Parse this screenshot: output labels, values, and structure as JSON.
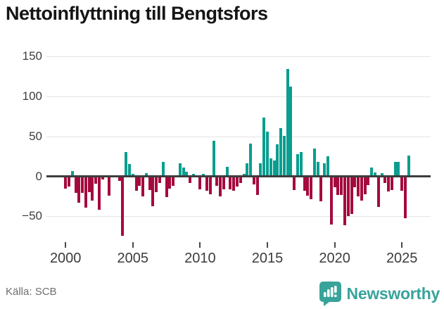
{
  "title": "Nettoinflyttning till Bengtsfors",
  "source": "Källa: SCB",
  "logo": {
    "text": "Newsworthy"
  },
  "colors": {
    "positive": "#0a9e8f",
    "negative": "#a50a3d",
    "logo_teal": "#38a39a",
    "zero_line": "#3d3d3d",
    "gridline": "#e4e4e4"
  },
  "chart_data": {
    "type": "bar",
    "title": "Nettoinflyttning till Bengtsfors",
    "xlabel": "",
    "ylabel": "",
    "frequency": "quarterly",
    "grid": "horizontal",
    "legend": "none",
    "ylim": [
      -80,
      155
    ],
    "y_tick_values": [
      150,
      100,
      50,
      0,
      -50
    ],
    "y_tick_labels": [
      "150",
      "100",
      "50",
      "0",
      "−50"
    ],
    "x_tick_years": [
      2000,
      2005,
      2010,
      2015,
      2020,
      2025
    ],
    "x_tick_labels": [
      "2000",
      "2005",
      "2010",
      "2015",
      "2020",
      "2025"
    ],
    "quarters": [
      "2000-Q1",
      "2000-Q2",
      "2000-Q3",
      "2000-Q4",
      "2001-Q1",
      "2001-Q2",
      "2001-Q3",
      "2001-Q4",
      "2002-Q1",
      "2002-Q2",
      "2002-Q3",
      "2002-Q4",
      "2003-Q1",
      "2003-Q2",
      "2003-Q3",
      "2003-Q4",
      "2004-Q1",
      "2004-Q2",
      "2004-Q3",
      "2004-Q4",
      "2005-Q1",
      "2005-Q2",
      "2005-Q3",
      "2005-Q4",
      "2006-Q1",
      "2006-Q2",
      "2006-Q3",
      "2006-Q4",
      "2007-Q1",
      "2007-Q2",
      "2007-Q3",
      "2007-Q4",
      "2008-Q1",
      "2008-Q2",
      "2008-Q3",
      "2008-Q4",
      "2009-Q1",
      "2009-Q2",
      "2009-Q3",
      "2009-Q4",
      "2010-Q1",
      "2010-Q2",
      "2010-Q3",
      "2010-Q4",
      "2011-Q1",
      "2011-Q2",
      "2011-Q3",
      "2011-Q4",
      "2012-Q1",
      "2012-Q2",
      "2012-Q3",
      "2012-Q4",
      "2013-Q1",
      "2013-Q2",
      "2013-Q3",
      "2013-Q4",
      "2014-Q1",
      "2014-Q2",
      "2014-Q3",
      "2014-Q4",
      "2015-Q1",
      "2015-Q2",
      "2015-Q3",
      "2015-Q4",
      "2016-Q1",
      "2016-Q2",
      "2016-Q3",
      "2016-Q4",
      "2017-Q1",
      "2017-Q2",
      "2017-Q3",
      "2017-Q4",
      "2018-Q1",
      "2018-Q2",
      "2018-Q3",
      "2018-Q4",
      "2019-Q1",
      "2019-Q2",
      "2019-Q3",
      "2019-Q4",
      "2020-Q1",
      "2020-Q2",
      "2020-Q3",
      "2020-Q4",
      "2021-Q1",
      "2021-Q2",
      "2021-Q3",
      "2021-Q4",
      "2022-Q1",
      "2022-Q2",
      "2022-Q3",
      "2022-Q4",
      "2023-Q1",
      "2023-Q2",
      "2023-Q3",
      "2023-Q4",
      "2024-Q1",
      "2024-Q2",
      "2024-Q3",
      "2024-Q4",
      "2025-Q1",
      "2025-Q2",
      "2025-Q3"
    ],
    "values": [
      -15,
      -13,
      7,
      -21,
      -33,
      -21,
      -39,
      -20,
      -30,
      -9,
      -42,
      -4,
      0,
      -24,
      0,
      0,
      -6,
      -74,
      30,
      15,
      3,
      -18,
      -12,
      -25,
      4,
      -17,
      -37,
      -20,
      -8,
      18,
      -26,
      -15,
      -12,
      0,
      16,
      11,
      6,
      -8,
      3,
      0,
      -16,
      3,
      -18,
      -22,
      44,
      -12,
      -25,
      -16,
      12,
      -16,
      -18,
      -13,
      -8,
      3,
      16,
      41,
      -10,
      -23,
      16,
      73,
      56,
      22,
      20,
      40,
      60,
      51,
      134,
      112,
      -17,
      28,
      30,
      -18,
      -24,
      -29,
      35,
      18,
      -31,
      16,
      25,
      -60,
      -14,
      -23,
      -23,
      -61,
      -50,
      -47,
      -14,
      -25,
      -30,
      -22,
      -11,
      11,
      5,
      -38,
      4,
      -8,
      -19,
      -17,
      18,
      18,
      -18,
      -52,
      26
    ]
  }
}
